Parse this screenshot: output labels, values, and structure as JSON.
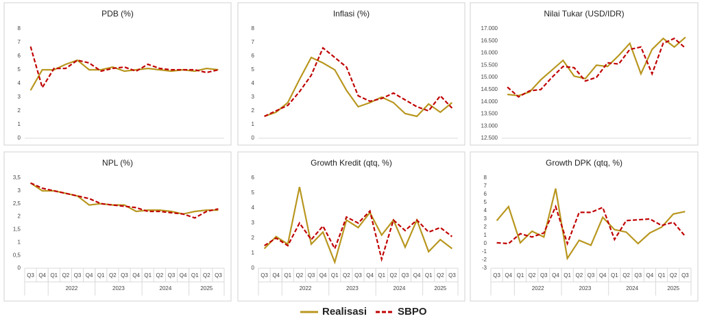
{
  "chart_data": [
    {
      "type": "line",
      "title": "PDB (%)",
      "ylim": [
        0,
        8
      ],
      "yticks": [
        0,
        1,
        2,
        3,
        4,
        5,
        6,
        7,
        8
      ],
      "series": [
        {
          "values": [
            3.5,
            5.0,
            5.0,
            5.4,
            5.7,
            5.0,
            5.0,
            5.2,
            4.9,
            5.0,
            5.1,
            5.0,
            4.9,
            5.0,
            4.9,
            5.1,
            5.0
          ]
        },
        {
          "values": [
            6.7,
            3.7,
            5.1,
            5.1,
            5.7,
            5.5,
            4.9,
            5.1,
            5.2,
            4.9,
            5.4,
            5.1,
            5.0,
            5.0,
            5.0,
            4.8,
            5.0
          ]
        }
      ]
    },
    {
      "type": "line",
      "title": "Inflasi (%)",
      "ylim": [
        0,
        8
      ],
      "yticks": [
        0,
        1,
        2,
        3,
        4,
        5,
        6,
        7,
        8
      ],
      "series": [
        {
          "values": [
            1.6,
            1.9,
            2.6,
            4.3,
            5.9,
            5.5,
            5.0,
            3.5,
            2.3,
            2.6,
            3.0,
            2.6,
            1.8,
            1.6,
            2.5,
            1.9,
            2.6
          ]
        },
        {
          "values": [
            1.6,
            2.0,
            2.4,
            3.4,
            4.6,
            6.6,
            5.9,
            5.2,
            3.1,
            2.7,
            2.9,
            3.3,
            2.8,
            2.3,
            2.0,
            3.1,
            2.2
          ]
        }
      ]
    },
    {
      "type": "line",
      "title": "Nilai Tukar (USD/IDR)",
      "ylim": [
        12500,
        17000
      ],
      "yticks": [
        {
          "value": 12500,
          "label": "12.500"
        },
        {
          "value": 13000,
          "label": "13.000"
        },
        {
          "value": 13500,
          "label": "13.500"
        },
        {
          "value": 14000,
          "label": "14.000"
        },
        {
          "value": 14500,
          "label": "14.500"
        },
        {
          "value": 15000,
          "label": "15.000"
        },
        {
          "value": 15500,
          "label": "15.500"
        },
        {
          "value": 16000,
          "label": "16.000"
        },
        {
          "value": 16500,
          "label": "16.500"
        },
        {
          "value": 17000,
          "label": "17.000"
        }
      ],
      "series": [
        {
          "values": [
            14300,
            14250,
            14400,
            14900,
            15300,
            15700,
            15050,
            14950,
            15500,
            15450,
            15900,
            16400,
            15150,
            16150,
            16600,
            16250,
            16650
          ]
        },
        {
          "values": [
            14600,
            14200,
            14450,
            14500,
            15000,
            15450,
            15400,
            14850,
            15000,
            15600,
            15550,
            16150,
            16250,
            15150,
            16400,
            16600,
            16200
          ]
        }
      ]
    },
    {
      "type": "line",
      "title": "NPL (%)",
      "ylim": [
        0,
        3.5
      ],
      "yticks": [
        0,
        {
          "value": 0.5,
          "label": "0,5"
        },
        1,
        {
          "value": 1.5,
          "label": "1,5"
        },
        2,
        {
          "value": 2.5,
          "label": "2,5"
        },
        3,
        {
          "value": 3.5,
          "label": "3,5"
        }
      ],
      "categories": [
        "Q3",
        "Q4",
        "Q1",
        "Q2",
        "Q3",
        "Q4",
        "Q1",
        "Q2",
        "Q3",
        "Q4",
        "Q1",
        "Q2",
        "Q3",
        "Q4",
        "Q1",
        "Q2",
        "Q3"
      ],
      "groups": [
        {
          "span": 2
        },
        {
          "label": "2022",
          "span": 4
        },
        {
          "label": "2023",
          "span": 4
        },
        {
          "label": "2024",
          "span": 4
        },
        {
          "label": "2025",
          "span": 3
        }
      ],
      "series": [
        {
          "values": [
            3.3,
            3.0,
            3.0,
            2.9,
            2.8,
            2.45,
            2.5,
            2.45,
            2.45,
            2.2,
            2.25,
            2.25,
            2.2,
            2.1,
            2.2,
            2.25,
            2.25
          ]
        },
        {
          "values": [
            3.3,
            3.1,
            3.0,
            2.9,
            2.8,
            2.7,
            2.5,
            2.45,
            2.4,
            2.35,
            2.2,
            2.2,
            2.15,
            2.1,
            1.95,
            2.2,
            2.3
          ]
        }
      ]
    },
    {
      "type": "line",
      "title": "Growth Kredit (qtq, %)",
      "ylim": [
        0,
        6
      ],
      "yticks": [
        0,
        1,
        2,
        3,
        4,
        5,
        6
      ],
      "categories": [
        "Q3",
        "Q4",
        "Q1",
        "Q2",
        "Q3",
        "Q4",
        "Q1",
        "Q2",
        "Q3",
        "Q4",
        "Q1",
        "Q2",
        "Q3",
        "Q4",
        "Q1",
        "Q2",
        "Q3"
      ],
      "groups": [
        {
          "span": 2
        },
        {
          "label": "2022",
          "span": 4
        },
        {
          "label": "2023",
          "span": 4
        },
        {
          "label": "2024",
          "span": 4
        },
        {
          "label": "2025",
          "span": 3
        }
      ],
      "series": [
        {
          "values": [
            1.3,
            2.1,
            1.6,
            5.4,
            1.6,
            2.4,
            0.4,
            3.2,
            2.7,
            3.7,
            2.2,
            3.2,
            1.4,
            3.2,
            1.1,
            1.9,
            1.3
          ]
        },
        {
          "values": [
            1.5,
            2.0,
            1.5,
            3.0,
            1.9,
            2.8,
            1.3,
            3.4,
            3.0,
            3.8,
            0.6,
            3.2,
            2.5,
            3.2,
            2.4,
            2.7,
            2.1
          ]
        }
      ]
    },
    {
      "type": "line",
      "title": "Growth DPK (qtq, %)",
      "ylim": [
        -3,
        8
      ],
      "yticks": [
        -3,
        -2,
        -1,
        0,
        1,
        2,
        3,
        4,
        5,
        6,
        7,
        8
      ],
      "categories": [
        "Q3",
        "Q4",
        "Q1",
        "Q2",
        "Q3",
        "Q4",
        "Q1",
        "Q2",
        "Q3",
        "Q4",
        "Q1",
        "Q2",
        "Q3",
        "Q4",
        "Q1",
        "Q2",
        "Q3"
      ],
      "groups": [
        {
          "span": 2
        },
        {
          "label": "2022",
          "span": 4
        },
        {
          "label": "2023",
          "span": 4
        },
        {
          "label": "2024",
          "span": 4
        },
        {
          "label": "2025",
          "span": 3
        }
      ],
      "series": [
        {
          "values": [
            2.8,
            4.5,
            0.1,
            1.5,
            0.8,
            6.7,
            -1.8,
            0.4,
            -0.2,
            3.2,
            1.7,
            1.4,
            0.0,
            1.3,
            2.0,
            3.6,
            3.9
          ]
        },
        {
          "values": [
            0.1,
            0.0,
            1.2,
            0.8,
            1.3,
            4.5,
            0.0,
            3.8,
            3.8,
            4.4,
            0.5,
            2.8,
            2.9,
            3.0,
            2.2,
            2.6,
            0.9
          ]
        }
      ]
    }
  ],
  "legend": {
    "series": [
      {
        "name": "Realisasi",
        "color": "#b8961e",
        "style": "solid"
      },
      {
        "name": "SBPO",
        "color": "#c00000",
        "style": "dashed"
      }
    ]
  }
}
